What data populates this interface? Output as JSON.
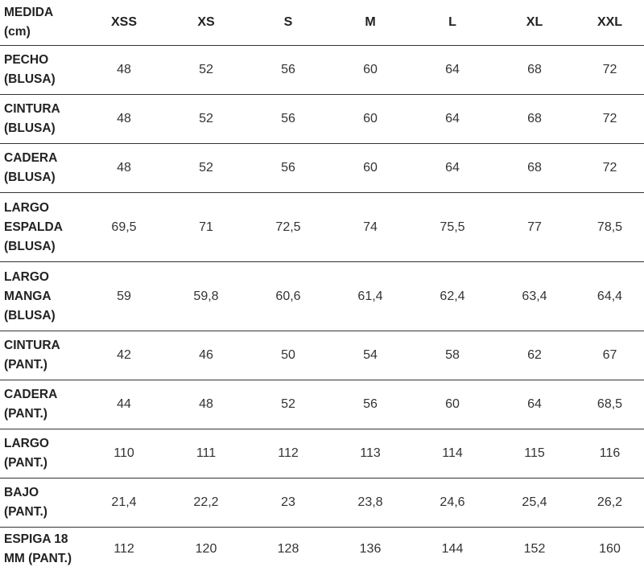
{
  "table": {
    "header": {
      "label": [
        "MEDIDA",
        "(cm)"
      ],
      "sizes": [
        "XSS",
        "XS",
        "S",
        "M",
        "L",
        "XL",
        "XXL"
      ]
    },
    "rows": [
      {
        "label": [
          "PECHO",
          "(BLUSA)"
        ],
        "values": [
          "48",
          "52",
          "56",
          "60",
          "64",
          "68",
          "72"
        ]
      },
      {
        "label": [
          "CINTURA",
          "(BLUSA)"
        ],
        "values": [
          "48",
          "52",
          "56",
          "60",
          "64",
          "68",
          "72"
        ]
      },
      {
        "label": [
          "CADERA",
          "(BLUSA)"
        ],
        "values": [
          "48",
          "52",
          "56",
          "60",
          "64",
          "68",
          "72"
        ]
      },
      {
        "label": [
          "LARGO",
          "ESPALDA",
          "(BLUSA)"
        ],
        "values": [
          "69,5",
          "71",
          "72,5",
          "74",
          "75,5",
          "77",
          "78,5"
        ]
      },
      {
        "label": [
          "LARGO",
          "MANGA",
          "(BLUSA)"
        ],
        "values": [
          "59",
          "59,8",
          "60,6",
          "61,4",
          "62,4",
          "63,4",
          "64,4"
        ]
      },
      {
        "label": [
          "CINTURA",
          "(PANT.)"
        ],
        "values": [
          "42",
          "46",
          "50",
          "54",
          "58",
          "62",
          "67"
        ]
      },
      {
        "label": [
          "CADERA",
          "(PANT.)"
        ],
        "values": [
          "44",
          "48",
          "52",
          "56",
          "60",
          "64",
          "68,5"
        ]
      },
      {
        "label": [
          "LARGO",
          "(PANT.)"
        ],
        "values": [
          "110",
          "111",
          "112",
          "113",
          "114",
          "115",
          "116"
        ]
      },
      {
        "label": [
          "BAJO",
          "(PANT.)"
        ],
        "values": [
          "21,4",
          "22,2",
          "23",
          "23,8",
          "24,6",
          "25,4",
          "26,2"
        ]
      },
      {
        "label": [
          "ESPIGA 18",
          "MM (PANT.)"
        ],
        "values": [
          "112",
          "120",
          "128",
          "136",
          "144",
          "152",
          "160"
        ]
      }
    ]
  }
}
